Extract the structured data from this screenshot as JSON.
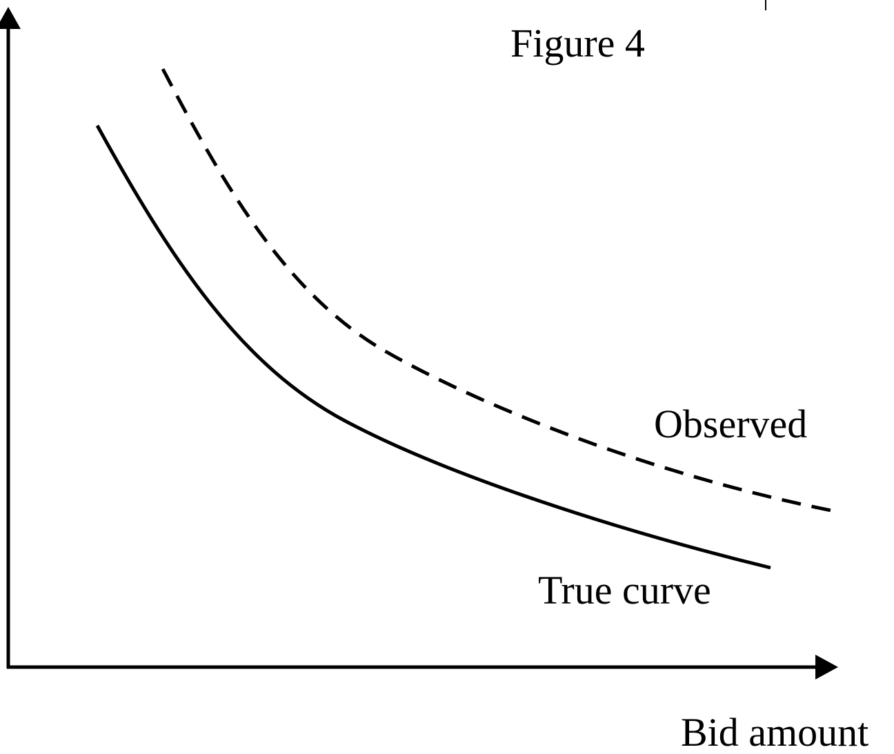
{
  "title": "Figure 4",
  "x_axis_label": "Bid amount",
  "curves": [
    {
      "label": "Observed"
    },
    {
      "label": "True curve"
    }
  ]
}
